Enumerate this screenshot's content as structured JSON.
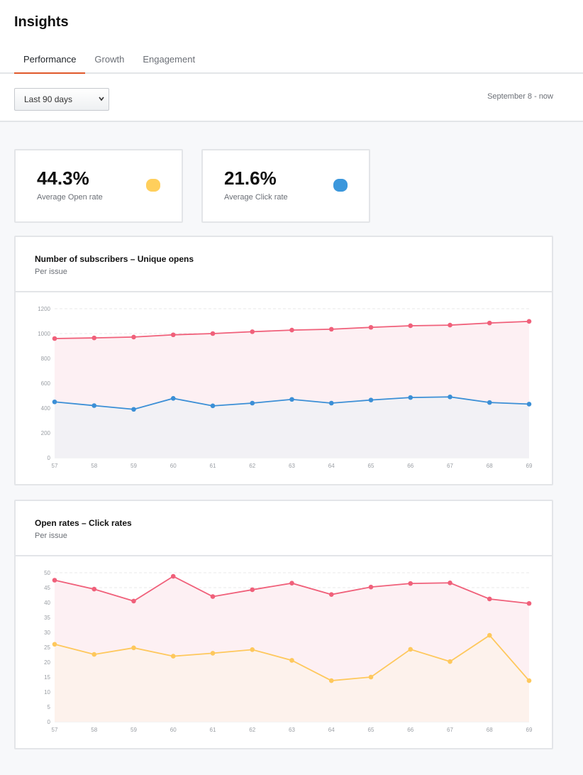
{
  "page": {
    "title": "Insights",
    "tabs": [
      {
        "label": "Performance",
        "active": true
      },
      {
        "label": "Growth",
        "active": false
      },
      {
        "label": "Engagement",
        "active": false
      }
    ]
  },
  "filter": {
    "period": "Last 90 days",
    "date_range": "September 8 - now"
  },
  "kpis": [
    {
      "value": "44.3%",
      "label": "Average Open rate",
      "color": "#ffcf5c"
    },
    {
      "value": "21.6%",
      "label": "Average Click rate",
      "color": "#3b97dc"
    }
  ],
  "colors": {
    "red": "#f0607a",
    "blue": "#3b8fd6",
    "yellow": "#fec85c",
    "grid": "#e8e8ea",
    "axis_text": "#9a9ea4"
  },
  "chart_data": [
    {
      "type": "area",
      "title": "Number of subscribers – Unique opens",
      "subtitle": "Per issue",
      "x": [
        57,
        58,
        59,
        60,
        61,
        62,
        63,
        64,
        65,
        66,
        67,
        68,
        69
      ],
      "ylim": [
        0,
        1200
      ],
      "yticks": [
        0,
        200,
        400,
        600,
        800,
        1000,
        1200
      ],
      "grid": true,
      "series": [
        {
          "values": [
            960,
            965,
            972,
            990,
            1000,
            1015,
            1028,
            1035,
            1050,
            1063,
            1068,
            1085,
            1098
          ],
          "color": "#f0607a",
          "fill": "#fdf0f3"
        },
        {
          "values": [
            450,
            420,
            390,
            478,
            418,
            440,
            470,
            440,
            465,
            485,
            490,
            445,
            432
          ],
          "color": "#3b8fd6",
          "fill": "#f2f1f5"
        }
      ]
    },
    {
      "type": "area",
      "title": "Open rates – Click rates",
      "subtitle": "Per issue",
      "x": [
        57,
        58,
        59,
        60,
        61,
        62,
        63,
        64,
        65,
        66,
        67,
        68,
        69
      ],
      "ylim": [
        0,
        50
      ],
      "yticks": [
        0,
        5,
        10,
        15,
        20,
        25,
        30,
        35,
        40,
        45,
        50
      ],
      "grid": true,
      "series": [
        {
          "values": [
            47.5,
            44.5,
            40.5,
            48.8,
            42.0,
            44.3,
            46.5,
            42.7,
            45.2,
            46.4,
            46.6,
            41.2,
            39.7
          ],
          "color": "#f0607a",
          "fill": "#fdf0f3"
        },
        {
          "values": [
            26.0,
            22.6,
            24.8,
            22.0,
            23.0,
            24.2,
            20.6,
            13.8,
            15.0,
            24.3,
            20.2,
            29.0,
            13.8
          ],
          "color": "#fec85c",
          "fill": "#fdf2ec"
        }
      ]
    }
  ]
}
